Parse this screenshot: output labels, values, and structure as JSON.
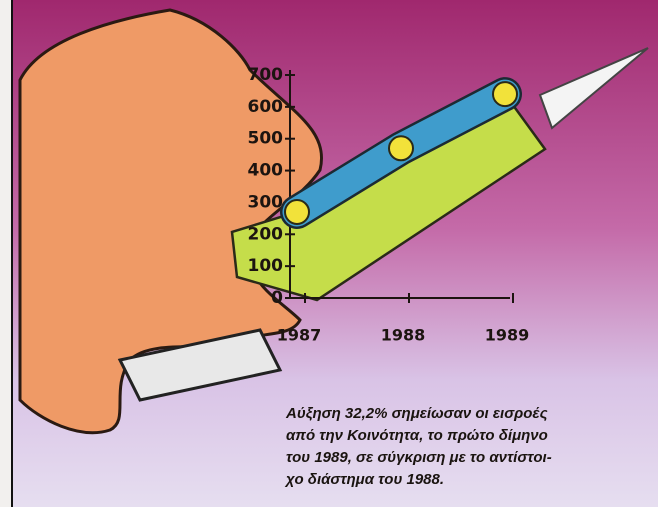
{
  "chart_data": {
    "type": "line",
    "categories": [
      "1987",
      "1988",
      "1989"
    ],
    "values": [
      270,
      470,
      640
    ],
    "color": "#3f9ccc",
    "marker_color": "#f2e23a",
    "ylim": [
      0,
      700
    ],
    "yticks": [
      0,
      100,
      200,
      300,
      400,
      500,
      600,
      700
    ],
    "note": [
      "Αύξηση 32,2% σημείωσαν οι εισροές",
      "από την Κοινότητα, το πρώτο δίμηνο",
      "του 1989, σε σύγκριση με το αντίστοι-",
      "χο διάστημα του 1988."
    ]
  }
}
